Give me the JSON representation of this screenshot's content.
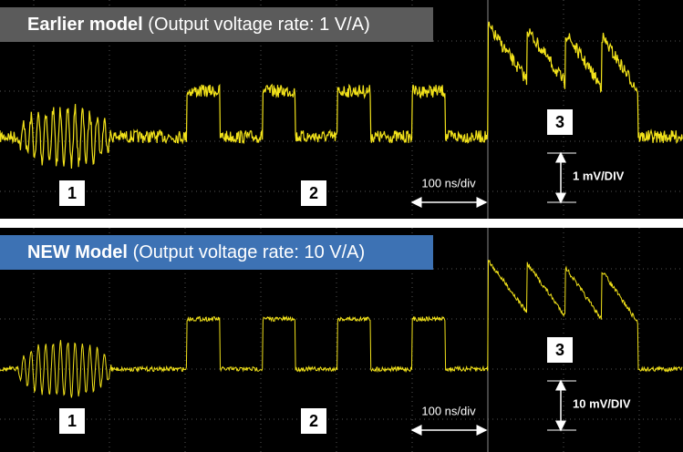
{
  "panels": [
    {
      "title": "Earlier model",
      "subtitle": "(Output voltage rate: 1 V/A)",
      "markers": [
        "1",
        "2",
        "3"
      ],
      "time_scale": "100 ns/div",
      "voltage_scale": "1 mV/DIV"
    },
    {
      "title": "NEW Model",
      "subtitle": "(Output voltage rate: 10 V/A)",
      "markers": [
        "1",
        "2",
        "3"
      ],
      "time_scale": "100 ns/div",
      "voltage_scale": "10 mV/DIV"
    }
  ]
}
